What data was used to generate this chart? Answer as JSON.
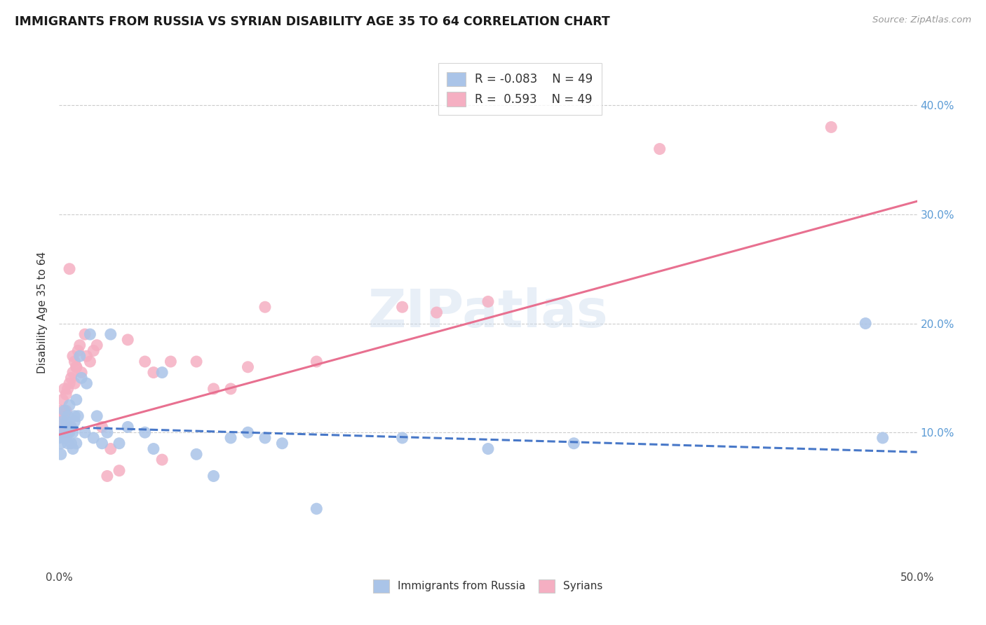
{
  "title": "IMMIGRANTS FROM RUSSIA VS SYRIAN DISABILITY AGE 35 TO 64 CORRELATION CHART",
  "source": "Source: ZipAtlas.com",
  "ylabel": "Disability Age 35 to 64",
  "xlim": [
    0.0,
    0.5
  ],
  "ylim": [
    -0.025,
    0.445
  ],
  "xtick_vals": [
    0.0,
    0.1,
    0.2,
    0.3,
    0.4,
    0.5
  ],
  "xtick_labels": [
    "0.0%",
    "",
    "",
    "",
    "",
    "50.0%"
  ],
  "ytick_vals": [
    0.1,
    0.2,
    0.3,
    0.4
  ],
  "ytick_labels_right": [
    "10.0%",
    "20.0%",
    "30.0%",
    "40.0%"
  ],
  "R_russia": -0.083,
  "R_syrian": 0.593,
  "N": 49,
  "russia_fill_color": "#aac4e8",
  "syrian_fill_color": "#f5afc2",
  "russia_line_color": "#4878c8",
  "syrian_line_color": "#e87090",
  "watermark": "ZIPatlas",
  "russia_line_x0": 0.0,
  "russia_line_y0": 0.105,
  "russia_line_x1": 0.5,
  "russia_line_y1": 0.082,
  "syrian_line_x0": 0.0,
  "syrian_line_y0": 0.098,
  "syrian_line_x1": 0.5,
  "syrian_line_y1": 0.312,
  "russia_x": [
    0.0,
    0.001,
    0.001,
    0.002,
    0.002,
    0.003,
    0.003,
    0.004,
    0.004,
    0.005,
    0.005,
    0.006,
    0.006,
    0.007,
    0.007,
    0.008,
    0.008,
    0.009,
    0.009,
    0.01,
    0.01,
    0.011,
    0.012,
    0.013,
    0.015,
    0.016,
    0.018,
    0.02,
    0.022,
    0.025,
    0.028,
    0.03,
    0.035,
    0.04,
    0.05,
    0.055,
    0.06,
    0.08,
    0.09,
    0.1,
    0.11,
    0.12,
    0.13,
    0.15,
    0.2,
    0.25,
    0.3,
    0.47,
    0.48
  ],
  "russia_y": [
    0.095,
    0.08,
    0.09,
    0.1,
    0.11,
    0.095,
    0.12,
    0.095,
    0.11,
    0.09,
    0.115,
    0.1,
    0.125,
    0.105,
    0.09,
    0.085,
    0.1,
    0.115,
    0.11,
    0.13,
    0.09,
    0.115,
    0.17,
    0.15,
    0.1,
    0.145,
    0.19,
    0.095,
    0.115,
    0.09,
    0.1,
    0.19,
    0.09,
    0.105,
    0.1,
    0.085,
    0.155,
    0.08,
    0.06,
    0.095,
    0.1,
    0.095,
    0.09,
    0.03,
    0.095,
    0.085,
    0.09,
    0.2,
    0.095
  ],
  "syrian_x": [
    0.0,
    0.001,
    0.001,
    0.002,
    0.002,
    0.003,
    0.003,
    0.004,
    0.004,
    0.005,
    0.005,
    0.006,
    0.006,
    0.007,
    0.007,
    0.008,
    0.008,
    0.009,
    0.009,
    0.01,
    0.01,
    0.011,
    0.012,
    0.013,
    0.015,
    0.016,
    0.018,
    0.02,
    0.022,
    0.025,
    0.028,
    0.03,
    0.035,
    0.04,
    0.05,
    0.055,
    0.06,
    0.065,
    0.08,
    0.09,
    0.1,
    0.11,
    0.12,
    0.15,
    0.2,
    0.22,
    0.25,
    0.35,
    0.45
  ],
  "syrian_y": [
    0.1,
    0.12,
    0.11,
    0.13,
    0.1,
    0.115,
    0.14,
    0.12,
    0.135,
    0.14,
    0.1,
    0.25,
    0.145,
    0.15,
    0.105,
    0.155,
    0.17,
    0.165,
    0.145,
    0.16,
    0.16,
    0.175,
    0.18,
    0.155,
    0.19,
    0.17,
    0.165,
    0.175,
    0.18,
    0.105,
    0.06,
    0.085,
    0.065,
    0.185,
    0.165,
    0.155,
    0.075,
    0.165,
    0.165,
    0.14,
    0.14,
    0.16,
    0.215,
    0.165,
    0.215,
    0.21,
    0.22,
    0.36,
    0.38
  ],
  "background_color": "#ffffff",
  "grid_color": "#cccccc"
}
